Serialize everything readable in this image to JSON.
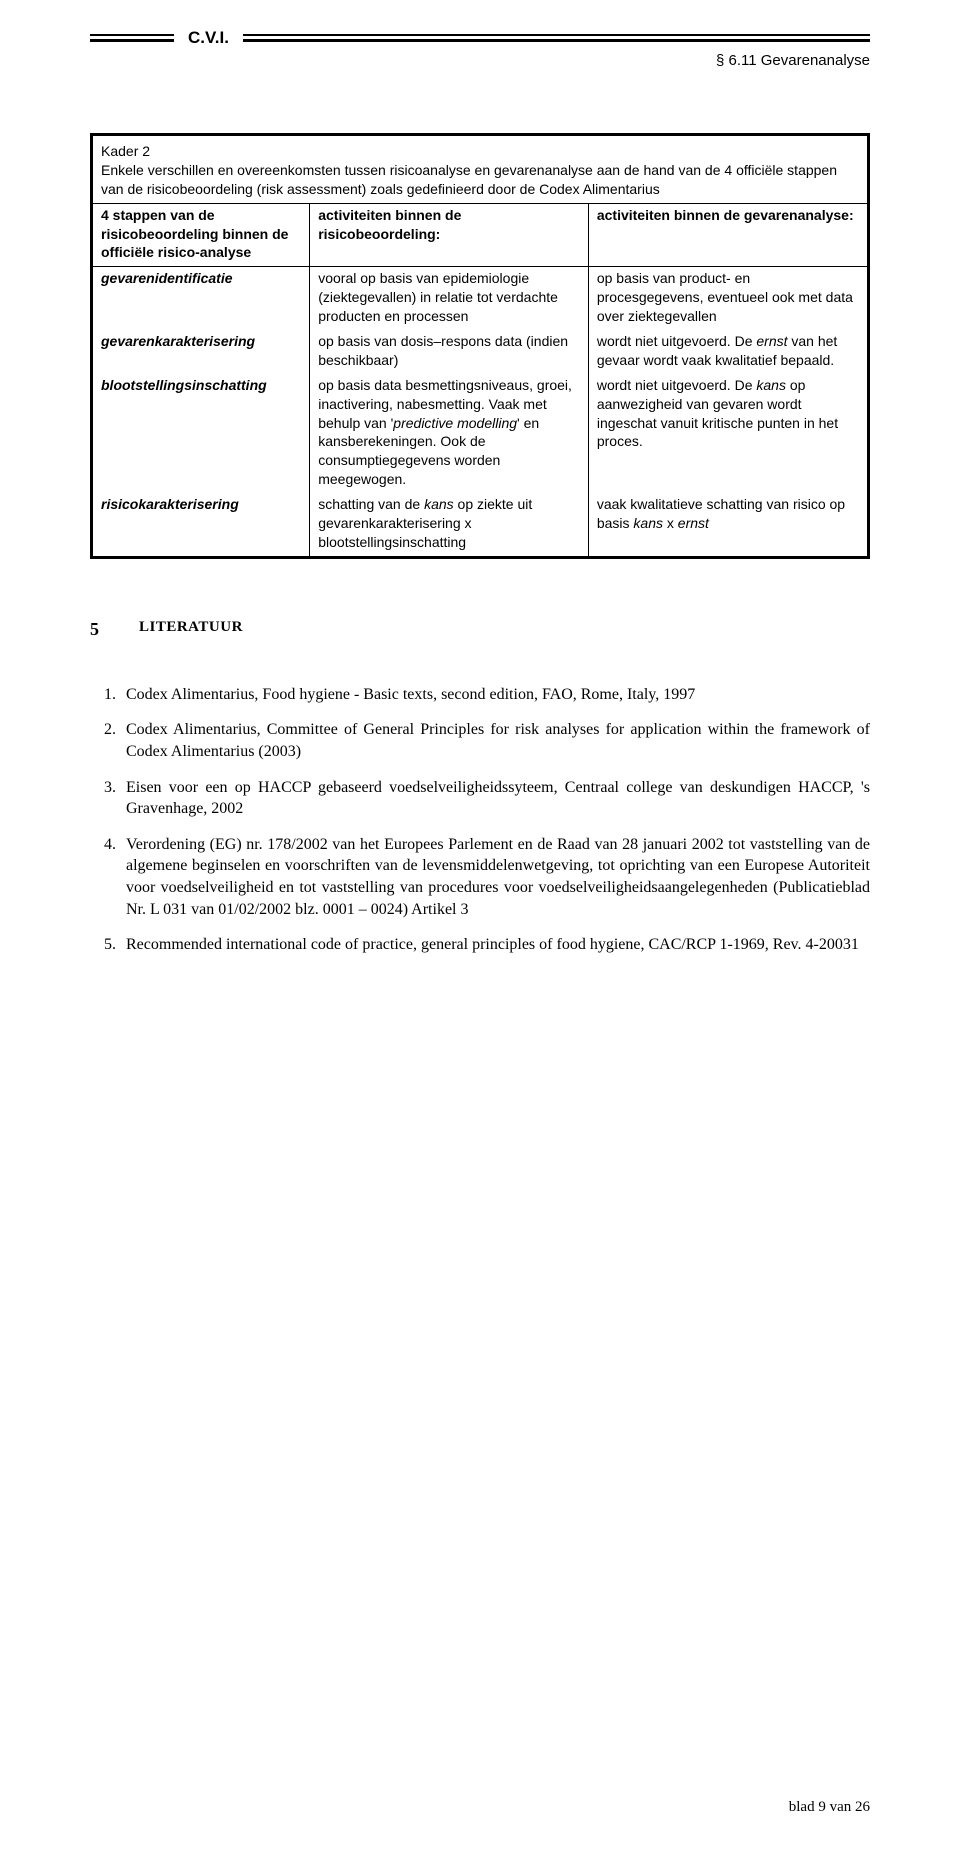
{
  "header": {
    "abbrev": "C.V.I.",
    "section": "§ 6.11 Gevarenanalyse"
  },
  "kader": {
    "title": "Kader 2",
    "intro": "Enkele verschillen en overeenkomsten tussen risicoanalyse en gevarenanalyse aan de hand van de 4 officiële stappen van de risicobeoordeling (risk assessment) zoals gedefinieerd door de Codex Alimentarius",
    "headers": {
      "c1": "4 stappen van de risicobeoordeling binnen de officiële risico-analyse",
      "c2": "activiteiten binnen de risicobeoordeling:",
      "c3": "activiteiten binnen de gevarenanalyse:"
    },
    "rows": [
      {
        "label": "gevarenidentificatie",
        "c2": "vooral op basis van epidemiologie (ziektegevallen) in relatie tot verdachte producten en processen",
        "c3": "op basis van product- en procesgegevens, eventueel ook met data over ziektegevallen"
      },
      {
        "label": "gevarenkarakterisering",
        "c2": "op basis van dosis–respons data (indien beschikbaar)",
        "c3_html": "wordt niet uitgevoerd. De <em>ernst</em> van het gevaar wordt vaak kwalitatief bepaald."
      },
      {
        "label": "blootstellingsinschatting",
        "c2_html": "op basis data besmettingsniveaus, groei, inactivering, nabesmetting. Vaak met behulp van '<em>predictive modelling</em>' en kansberekeningen. Ook de consumptiegegevens worden meegewogen.",
        "c3_html": "wordt niet uitgevoerd. De <em>kans</em> op aanwezigheid van gevaren wordt ingeschat vanuit kritische punten in het proces."
      },
      {
        "label": "risicokarakterisering",
        "c2_html": "schatting van de <em>kans</em> op ziekte uit gevarenkarakterisering x blootstellingsinschatting",
        "c3_html": "vaak kwalitatieve schatting van risico op basis <em>kans</em> x <em>ernst</em>"
      }
    ]
  },
  "literatuur": {
    "num": "5",
    "title": "LITERATUUR",
    "items": [
      "Codex Alimentarius, Food hygiene - Basic texts, second edition, FAO, Rome, Italy, 1997",
      "Codex Alimentarius, Committee of General Principles for risk analyses for application within the framework of Codex Alimentarius (2003)",
      "Eisen voor een op HACCP gebaseerd voedselveiligheidssyteem, Centraal college van deskundigen HACCP, 's Gravenhage, 2002",
      "Verordening (EG) nr. 178/2002 van het Europees Parlement en de Raad van 28 januari 2002 tot vaststelling van de algemene beginselen en voorschriften van de levensmiddelenwetgeving, tot oprichting van een Europese Autoriteit voor voedselveiligheid en tot vaststelling van procedures voor voedselveiligheidsaangelegenheden (Publicatieblad Nr. L 031 van 01/02/2002 blz. 0001 – 0024) Artikel 3",
      "Recommended international code of practice, general principles of food hygiene, CAC/RCP 1-1969, Rev. 4-20031"
    ]
  },
  "footer": "blad 9 van 26"
}
